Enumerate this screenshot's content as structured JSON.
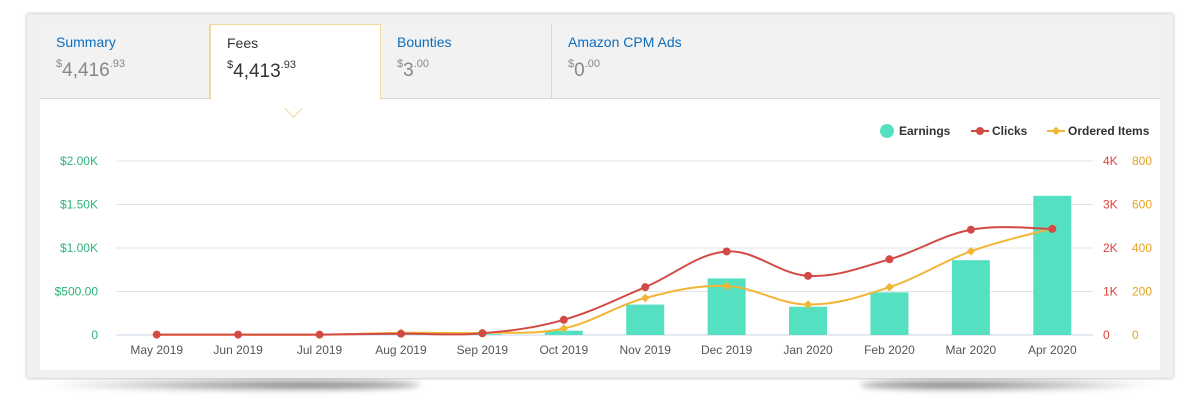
{
  "tabs": [
    {
      "label": "Summary",
      "currency": "$",
      "whole": "4,416",
      "cents": ".93"
    },
    {
      "label": "Fees",
      "currency": "$",
      "whole": "4,413",
      "cents": ".93"
    },
    {
      "label": "Bounties",
      "currency": "$",
      "whole": "3",
      "cents": ".00"
    },
    {
      "label": "Amazon CPM Ads",
      "currency": "$",
      "whole": "0",
      "cents": ".00"
    }
  ],
  "active_tab": "Fees",
  "colors": {
    "earnings": "#55e0c1",
    "clicks": "#d24a43",
    "ordered_items": "#f2b536",
    "tab_link": "#0c6dbd"
  },
  "chart_data": {
    "type": "bar+line",
    "categories": [
      "May 2019",
      "Jun 2019",
      "Jul 2019",
      "Aug 2019",
      "Sep 2019",
      "Oct 2019",
      "Nov 2019",
      "Dec 2019",
      "Jan 2020",
      "Feb 2020",
      "Mar 2020",
      "Apr 2020"
    ],
    "series": [
      {
        "name": "Earnings",
        "kind": "bar",
        "axis": "left",
        "values": [
          0,
          0,
          0,
          5,
          10,
          50,
          350,
          650,
          325,
          490,
          860,
          1600
        ]
      },
      {
        "name": "Clicks",
        "kind": "line",
        "axis": "right1",
        "values": [
          10,
          10,
          10,
          30,
          40,
          350,
          1100,
          1920,
          1360,
          1740,
          2420,
          2440
        ]
      },
      {
        "name": "Ordered Items",
        "kind": "line",
        "axis": "right2",
        "values": [
          1,
          1,
          1,
          10,
          10,
          30,
          170,
          225,
          140,
          220,
          385,
          490
        ]
      }
    ],
    "axes": {
      "left": {
        "ticks": [
          "0",
          "$500.00",
          "$1.00K",
          "$1.50K",
          "$2.00K"
        ],
        "range": [
          0,
          2000
        ]
      },
      "right1": {
        "ticks": [
          "0",
          "1K",
          "2K",
          "3K",
          "4K"
        ],
        "range": [
          0,
          4000
        ]
      },
      "right2": {
        "ticks": [
          "0",
          "200",
          "400",
          "600",
          "800"
        ],
        "range": [
          0,
          800
        ]
      }
    },
    "legend": {
      "position": "top-right",
      "items": [
        "Earnings",
        "Clicks",
        "Ordered Items"
      ]
    },
    "grid": true
  }
}
